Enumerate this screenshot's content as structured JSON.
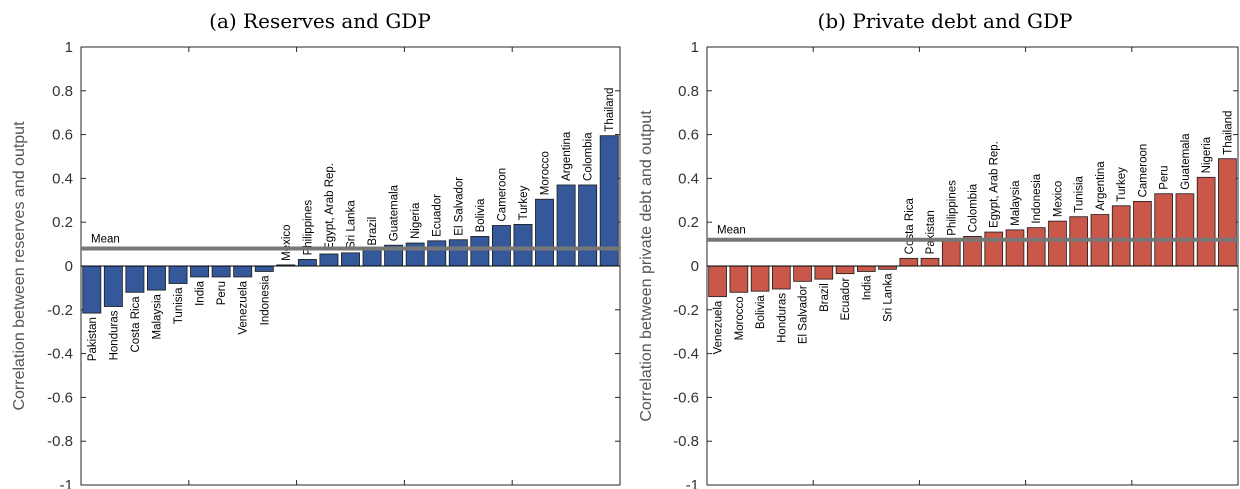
{
  "chart_data": [
    {
      "type": "bar",
      "title": "(a) Reserves and GDP",
      "xlabel": "",
      "ylabel": "Correlation between reserves and output",
      "ylim": [
        -1,
        1
      ],
      "yticks": [
        "-1",
        "-0.8",
        "-0.6",
        "-0.4",
        "-0.2",
        "0",
        "0.2",
        "0.4",
        "0.6",
        "0.8",
        "1"
      ],
      "grid": false,
      "bar_color": "#34589a",
      "mean": {
        "label": "Mean",
        "value": 0.08,
        "color": "#777777"
      },
      "categories": [
        "Pakistan",
        "Honduras",
        "Costa Rica",
        "Malaysia",
        "Tunisia",
        "India",
        "Peru",
        "Venezuela",
        "Indonesia",
        "Mexico",
        "Philippines",
        "Egypt, Arab Rep.",
        "Sri Lanka",
        "Brazil",
        "Guatemala",
        "Nigeria",
        "Ecuador",
        "El Salvador",
        "Bolivia",
        "Cameroon",
        "Turkey",
        "Morocco",
        "Argentina",
        "Colombia",
        "Thailand"
      ],
      "values": [
        -0.215,
        -0.185,
        -0.12,
        -0.11,
        -0.08,
        -0.05,
        -0.05,
        -0.05,
        -0.025,
        0.005,
        0.03,
        0.055,
        0.06,
        0.075,
        0.095,
        0.105,
        0.115,
        0.12,
        0.135,
        0.185,
        0.19,
        0.305,
        0.37,
        0.37,
        0.595
      ]
    },
    {
      "type": "bar",
      "title": "(b) Private debt and GDP",
      "xlabel": "",
      "ylabel": "Correlation between private debt and output",
      "ylim": [
        -1,
        1
      ],
      "yticks": [
        "-1",
        "-0.8",
        "-0.6",
        "-0.4",
        "-0.2",
        "0",
        "0.2",
        "0.4",
        "0.6",
        "0.8",
        "1"
      ],
      "grid": false,
      "bar_color": "#c9574a",
      "mean": {
        "label": "Mean",
        "value": 0.12,
        "color": "#777777"
      },
      "categories": [
        "Venezuela",
        "Morocco",
        "Bolivia",
        "Honduras",
        "El Salvador",
        "Brazil",
        "Ecuador",
        "India",
        "Sri Lanka",
        "Costa Rica",
        "Pakistan",
        "Philippines",
        "Colombia",
        "Egypt, Arab Rep.",
        "Malaysia",
        "Indonesia",
        "Mexico",
        "Tunisia",
        "Argentina",
        "Turkey",
        "Cameroon",
        "Peru",
        "Guatemala",
        "Nigeria",
        "Thailand"
      ],
      "values": [
        -0.14,
        -0.12,
        -0.115,
        -0.105,
        -0.07,
        -0.06,
        -0.035,
        -0.025,
        -0.015,
        0.035,
        0.035,
        0.12,
        0.135,
        0.155,
        0.165,
        0.175,
        0.205,
        0.225,
        0.235,
        0.275,
        0.295,
        0.33,
        0.33,
        0.405,
        0.49
      ]
    }
  ]
}
